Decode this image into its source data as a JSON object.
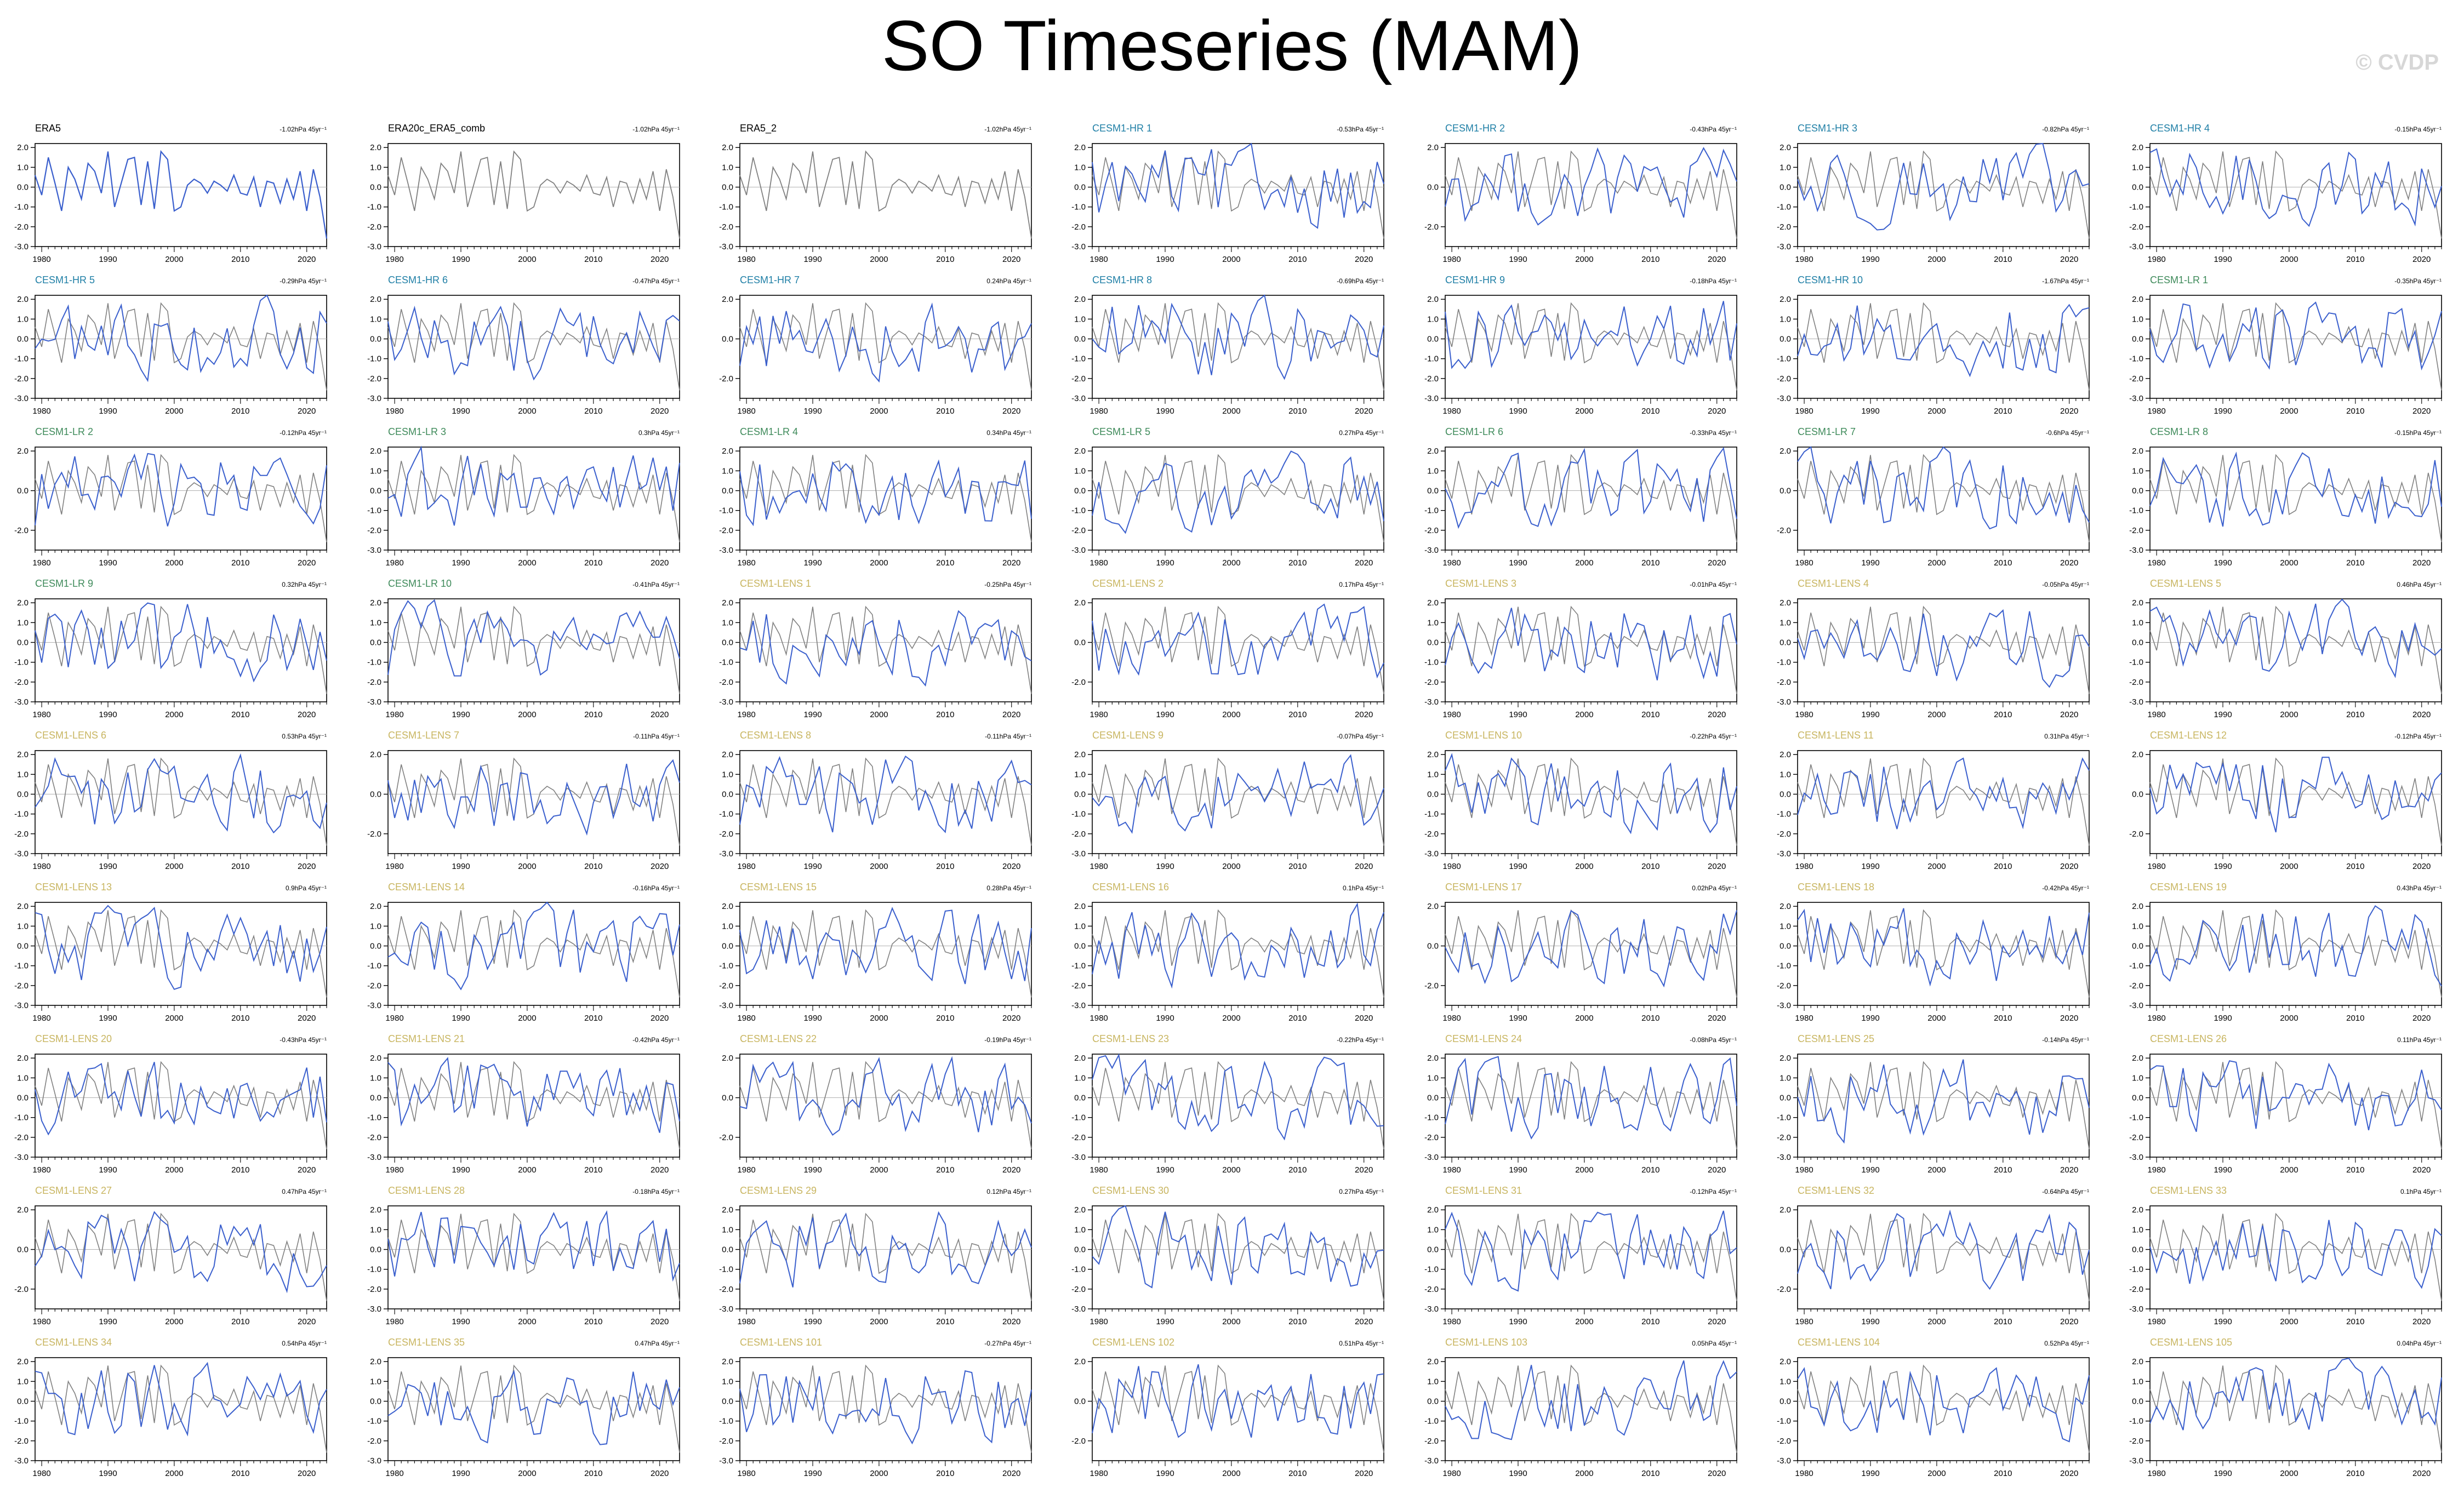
{
  "page": {
    "title": "SO Timeseries (MAM)",
    "watermark": "© CVDP"
  },
  "colors": {
    "ref": "#808080",
    "model": "#3a5fcd",
    "obs_title": "#000000",
    "hr_title": "#1f7fa6",
    "lr_title": "#3e8a5a",
    "lens_title": "#c8b560"
  },
  "chart_data": {
    "type": "line",
    "x_start": 1979,
    "x_end": 2023,
    "x_ticks": [
      1980,
      1990,
      2000,
      2010,
      2020
    ],
    "y_ticks_default": [
      "2.0",
      "1.0",
      "0.0",
      "-1.0",
      "-2.0",
      "-3.0"
    ],
    "y_ticks_short": [
      "2.0",
      "0.0",
      "-2.0"
    ],
    "ylim": [
      -3,
      2.2
    ],
    "reference_series": {
      "name": "ERA5",
      "values": [
        0.6,
        -0.4,
        1.5,
        0.2,
        -1.2,
        1.0,
        0.4,
        -0.6,
        1.2,
        0.8,
        -0.3,
        1.8,
        -1.0,
        0.2,
        1.4,
        1.5,
        -0.9,
        1.3,
        -1.1,
        1.8,
        1.4,
        -1.2,
        -1.0,
        0.1,
        0.4,
        0.2,
        -0.3,
        0.3,
        0.1,
        -0.2,
        0.6,
        -0.3,
        -0.4,
        0.5,
        -1.0,
        0.3,
        0.2,
        -0.8,
        0.4,
        -0.6,
        0.8,
        -1.2,
        0.9,
        -0.5,
        -2.6
      ]
    },
    "panels": [
      {
        "title": "ERA5",
        "trend": "-1.02hPa 45yr⁻¹",
        "group": "obs"
      },
      {
        "title": "ERA20c_ERA5_comb",
        "trend": "-1.02hPa 45yr⁻¹",
        "group": "obs"
      },
      {
        "title": "ERA5_2",
        "trend": "-1.02hPa 45yr⁻¹",
        "group": "obs"
      },
      {
        "title": "CESM1-HR 1",
        "trend": "-0.53hPa 45yr⁻¹",
        "group": "hr"
      },
      {
        "title": "CESM1-HR 2",
        "trend": "-0.43hPa 45yr⁻¹",
        "group": "hr"
      },
      {
        "title": "CESM1-HR 3",
        "trend": "-0.82hPa 45yr⁻¹",
        "group": "hr"
      },
      {
        "title": "CESM1-HR 4",
        "trend": "-0.15hPa 45yr⁻¹",
        "group": "hr"
      },
      {
        "title": "CESM1-HR 5",
        "trend": "-0.29hPa 45yr⁻¹",
        "group": "hr"
      },
      {
        "title": "CESM1-HR 6",
        "trend": "-0.47hPa 45yr⁻¹",
        "group": "hr"
      },
      {
        "title": "CESM1-HR 7",
        "trend": "0.24hPa 45yr⁻¹",
        "group": "hr"
      },
      {
        "title": "CESM1-HR 8",
        "trend": "-0.69hPa 45yr⁻¹",
        "group": "hr"
      },
      {
        "title": "CESM1-HR 9",
        "trend": "-0.18hPa 45yr⁻¹",
        "group": "hr"
      },
      {
        "title": "CESM1-HR 10",
        "trend": "-1.67hPa 45yr⁻¹",
        "group": "hr"
      },
      {
        "title": "CESM1-LR 1",
        "trend": "-0.35hPa 45yr⁻¹",
        "group": "lr"
      },
      {
        "title": "CESM1-LR 2",
        "trend": "-0.12hPa 45yr⁻¹",
        "group": "lr"
      },
      {
        "title": "CESM1-LR 3",
        "trend": "0.3hPa 45yr⁻¹",
        "group": "lr"
      },
      {
        "title": "CESM1-LR 4",
        "trend": "0.34hPa 45yr⁻¹",
        "group": "lr"
      },
      {
        "title": "CESM1-LR 5",
        "trend": "0.27hPa 45yr⁻¹",
        "group": "lr"
      },
      {
        "title": "CESM1-LR 6",
        "trend": "-0.33hPa 45yr⁻¹",
        "group": "lr"
      },
      {
        "title": "CESM1-LR 7",
        "trend": "-0.6hPa 45yr⁻¹",
        "group": "lr"
      },
      {
        "title": "CESM1-LR 8",
        "trend": "-0.15hPa 45yr⁻¹",
        "group": "lr"
      },
      {
        "title": "CESM1-LR 9",
        "trend": "0.32hPa 45yr⁻¹",
        "group": "lr"
      },
      {
        "title": "CESM1-LR 10",
        "trend": "-0.41hPa 45yr⁻¹",
        "group": "lr"
      },
      {
        "title": "CESM1-LENS 1",
        "trend": "-0.25hPa 45yr⁻¹",
        "group": "lens"
      },
      {
        "title": "CESM1-LENS 2",
        "trend": "0.17hPa 45yr⁻¹",
        "group": "lens"
      },
      {
        "title": "CESM1-LENS 3",
        "trend": "-0.01hPa 45yr⁻¹",
        "group": "lens"
      },
      {
        "title": "CESM1-LENS 4",
        "trend": "-0.05hPa 45yr⁻¹",
        "group": "lens"
      },
      {
        "title": "CESM1-LENS 5",
        "trend": "0.46hPa 45yr⁻¹",
        "group": "lens"
      },
      {
        "title": "CESM1-LENS 6",
        "trend": "0.53hPa 45yr⁻¹",
        "group": "lens"
      },
      {
        "title": "CESM1-LENS 7",
        "trend": "-0.11hPa 45yr⁻¹",
        "group": "lens"
      },
      {
        "title": "CESM1-LENS 8",
        "trend": "-0.11hPa 45yr⁻¹",
        "group": "lens"
      },
      {
        "title": "CESM1-LENS 9",
        "trend": "-0.07hPa 45yr⁻¹",
        "group": "lens"
      },
      {
        "title": "CESM1-LENS 10",
        "trend": "-0.22hPa 45yr⁻¹",
        "group": "lens"
      },
      {
        "title": "CESM1-LENS 11",
        "trend": "0.31hPa 45yr⁻¹",
        "group": "lens"
      },
      {
        "title": "CESM1-LENS 12",
        "trend": "-0.12hPa 45yr⁻¹",
        "group": "lens"
      },
      {
        "title": "CESM1-LENS 13",
        "trend": "0.9hPa 45yr⁻¹",
        "group": "lens"
      },
      {
        "title": "CESM1-LENS 14",
        "trend": "-0.16hPa 45yr⁻¹",
        "group": "lens"
      },
      {
        "title": "CESM1-LENS 15",
        "trend": "0.28hPa 45yr⁻¹",
        "group": "lens"
      },
      {
        "title": "CESM1-LENS 16",
        "trend": "0.1hPa 45yr⁻¹",
        "group": "lens"
      },
      {
        "title": "CESM1-LENS 17",
        "trend": "0.02hPa 45yr⁻¹",
        "group": "lens"
      },
      {
        "title": "CESM1-LENS 18",
        "trend": "-0.42hPa 45yr⁻¹",
        "group": "lens"
      },
      {
        "title": "CESM1-LENS 19",
        "trend": "0.43hPa 45yr⁻¹",
        "group": "lens"
      },
      {
        "title": "CESM1-LENS 20",
        "trend": "-0.43hPa 45yr⁻¹",
        "group": "lens"
      },
      {
        "title": "CESM1-LENS 21",
        "trend": "-0.42hPa 45yr⁻¹",
        "group": "lens"
      },
      {
        "title": "CESM1-LENS 22",
        "trend": "-0.19hPa 45yr⁻¹",
        "group": "lens"
      },
      {
        "title": "CESM1-LENS 23",
        "trend": "-0.22hPa 45yr⁻¹",
        "group": "lens"
      },
      {
        "title": "CESM1-LENS 24",
        "trend": "-0.08hPa 45yr⁻¹",
        "group": "lens"
      },
      {
        "title": "CESM1-LENS 25",
        "trend": "-0.14hPa 45yr⁻¹",
        "group": "lens"
      },
      {
        "title": "CESM1-LENS 26",
        "trend": "0.11hPa 45yr⁻¹",
        "group": "lens"
      },
      {
        "title": "CESM1-LENS 27",
        "trend": "0.47hPa 45yr⁻¹",
        "group": "lens"
      },
      {
        "title": "CESM1-LENS 28",
        "trend": "-0.18hPa 45yr⁻¹",
        "group": "lens"
      },
      {
        "title": "CESM1-LENS 29",
        "trend": "0.12hPa 45yr⁻¹",
        "group": "lens"
      },
      {
        "title": "CESM1-LENS 30",
        "trend": "0.27hPa 45yr⁻¹",
        "group": "lens"
      },
      {
        "title": "CESM1-LENS 31",
        "trend": "-0.12hPa 45yr⁻¹",
        "group": "lens"
      },
      {
        "title": "CESM1-LENS 32",
        "trend": "-0.64hPa 45yr⁻¹",
        "group": "lens"
      },
      {
        "title": "CESM1-LENS 33",
        "trend": "0.1hPa 45yr⁻¹",
        "group": "lens"
      },
      {
        "title": "CESM1-LENS 34",
        "trend": "0.54hPa 45yr⁻¹",
        "group": "lens"
      },
      {
        "title": "CESM1-LENS 35",
        "trend": "0.47hPa 45yr⁻¹",
        "group": "lens"
      },
      {
        "title": "CESM1-LENS 101",
        "trend": "-0.27hPa 45yr⁻¹",
        "group": "lens"
      },
      {
        "title": "CESM1-LENS 102",
        "trend": "0.51hPa 45yr⁻¹",
        "group": "lens"
      },
      {
        "title": "CESM1-LENS 103",
        "trend": "0.05hPa 45yr⁻¹",
        "group": "lens"
      },
      {
        "title": "CESM1-LENS 104",
        "trend": "0.52hPa 45yr⁻¹",
        "group": "lens"
      },
      {
        "title": "CESM1-LENS 105",
        "trend": "0.04hPa 45yr⁻¹",
        "group": "lens"
      }
    ]
  }
}
